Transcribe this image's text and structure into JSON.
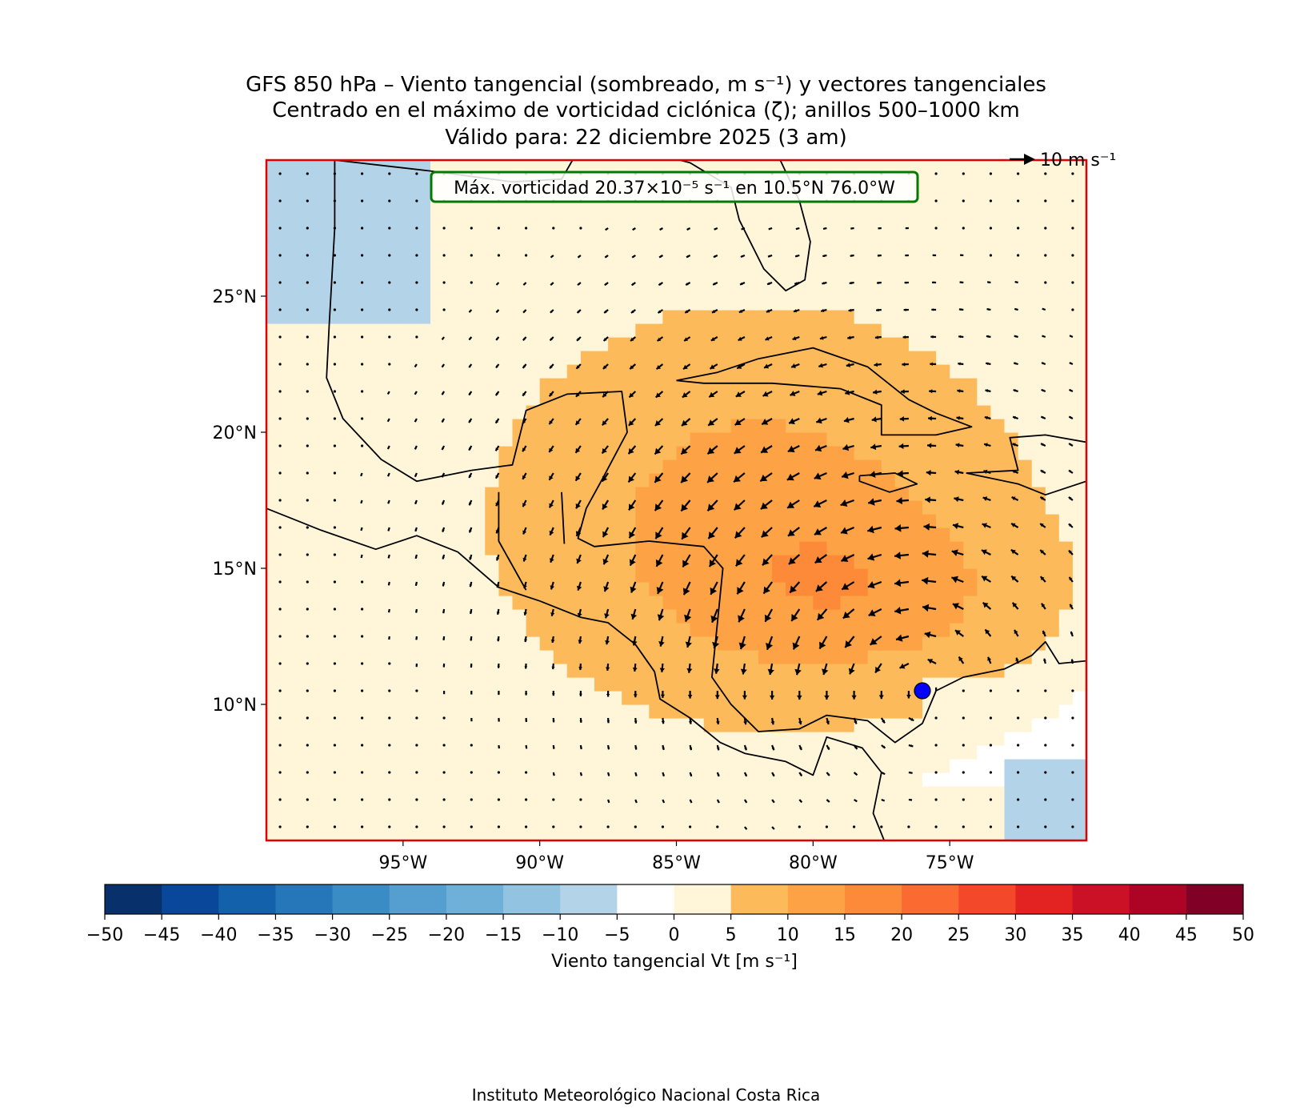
{
  "title_lines": [
    "GFS 850 hPa – Viento tangencial (sombreado, m s⁻¹) y vectores tangenciales",
    "Centrado en el máximo de vorticidad ciclónica (ζ); anillos 500–1000 km",
    "Válido para: 22 diciembre 2025 (3 am)"
  ],
  "annotation": "Máx. vorticidad 20.37×10⁻⁵ s⁻¹ en 10.5°N 76.0°W",
  "quiver_key": "10 m s⁻¹",
  "credit": "Instituto Meteorológico Nacional Costa Rica",
  "map": {
    "lon_range": [
      -100,
      -70
    ],
    "lat_range": [
      5,
      30
    ],
    "lon_ticks": [
      {
        "value": -95,
        "label": "95°W"
      },
      {
        "value": -90,
        "label": "90°W"
      },
      {
        "value": -85,
        "label": "85°W"
      },
      {
        "value": -80,
        "label": "80°W"
      },
      {
        "value": -75,
        "label": "75°W"
      }
    ],
    "lat_ticks": [
      {
        "value": 10,
        "label": "10°N"
      },
      {
        "value": 15,
        "label": "15°N"
      },
      {
        "value": 20,
        "label": "20°N"
      },
      {
        "value": 25,
        "label": "25°N"
      }
    ],
    "vorticity_max": {
      "lat": 10.5,
      "lon": -76.0,
      "color": "#0000ff"
    },
    "frame_color": "#e00000",
    "box_color": "#007a00"
  },
  "colorbar": {
    "label": "Viento tangencial Vt [m s⁻¹]",
    "ticks": [
      "−50",
      "−45",
      "−40",
      "−35",
      "−30",
      "−25",
      "−20",
      "−15",
      "−10",
      "−5",
      "0",
      "5",
      "10",
      "15",
      "20",
      "25",
      "30",
      "35",
      "40",
      "45",
      "50"
    ],
    "colors": [
      "#08306b",
      "#08479a",
      "#1461ab",
      "#2677ba",
      "#3a8cc4",
      "#549fcf",
      "#6fb0d9",
      "#92c3e0",
      "#b2d3e8",
      "#ffffff",
      "#fff6d9",
      "#fdba5a",
      "#fda346",
      "#fc8a38",
      "#fb6a30",
      "#f4482a",
      "#e22322",
      "#cb1125",
      "#ad0426",
      "#800026"
    ]
  }
}
